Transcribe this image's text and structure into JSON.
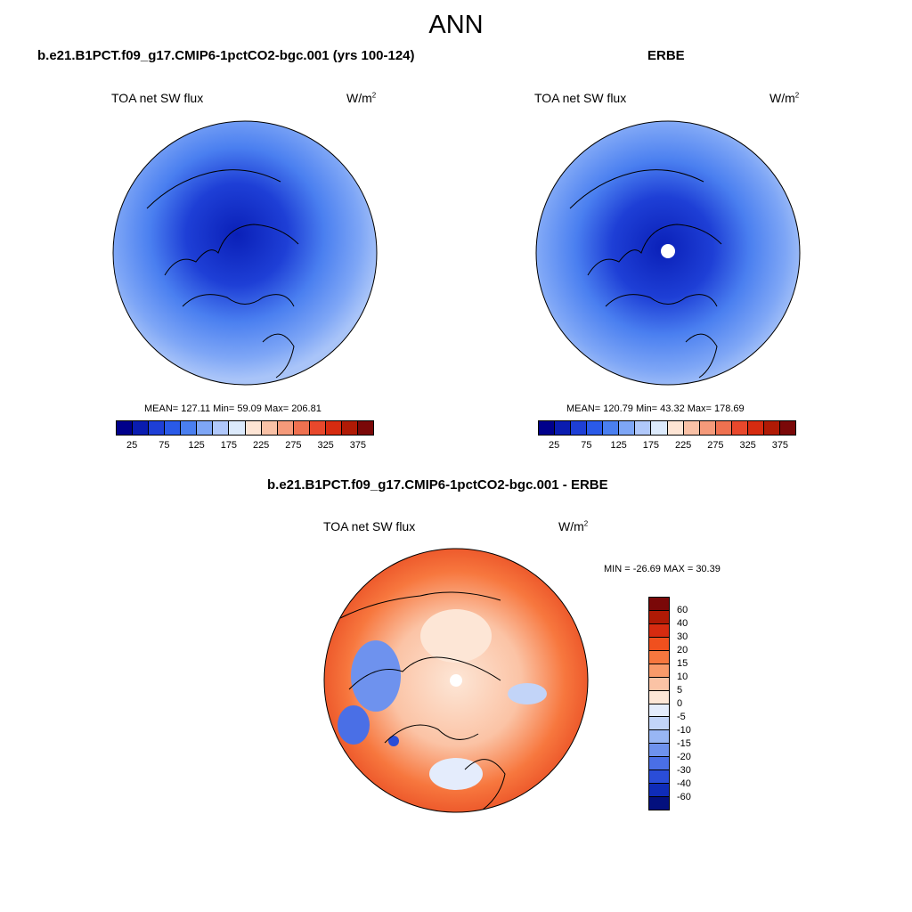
{
  "title": "ANN",
  "panels": [
    {
      "title": "b.e21.B1PCT.f09_g17.CMIP6-1pctCO2-bgc.001 (yrs 100-124)",
      "left_label": "TOA net SW flux",
      "units_base": "W/m",
      "units_exp": "2",
      "stats": "MEAN= 127.11  Min=  59.09  Max= 206.81",
      "colorbar_ticks": [
        "25",
        "75",
        "125",
        "175",
        "225",
        "275",
        "325",
        "375"
      ]
    },
    {
      "title": "ERBE",
      "left_label": "TOA net SW flux",
      "units_base": "W/m",
      "units_exp": "2",
      "stats": "MEAN= 120.79  Min=  43.32  Max= 178.69",
      "colorbar_ticks": [
        "25",
        "75",
        "125",
        "175",
        "225",
        "275",
        "325",
        "375"
      ]
    },
    {
      "title": "b.e21.B1PCT.f09_g17.CMIP6-1pctCO2-bgc.001 - ERBE",
      "left_label": "TOA net SW flux",
      "units_base": "W/m",
      "units_exp": "2",
      "stats": "MIN = -26.69 MAX =  30.39",
      "colorbar_ticks": [
        "60",
        "40",
        "30",
        "20",
        "15",
        "10",
        "5",
        "0",
        "-5",
        "-10",
        "-15",
        "-20",
        "-30",
        "-40",
        "-60"
      ]
    }
  ],
  "colors": {
    "abs_scale": [
      "#00008b",
      "#0a1cb0",
      "#1e3fd6",
      "#2a5ae8",
      "#4a7ff0",
      "#7ea6f6",
      "#b0c8fa",
      "#dceafc",
      "#fde4d4",
      "#f9c1a6",
      "#f59a7a",
      "#ef7150",
      "#e8482c",
      "#d62b10",
      "#b01a05",
      "#7a0808"
    ],
    "diff_scale": [
      "#7a0808",
      "#b01a05",
      "#d62b10",
      "#f0501e",
      "#f7773e",
      "#f99a6a",
      "#fbc3a5",
      "#fde6d6",
      "#e4ecfc",
      "#c2d4f8",
      "#98b6f4",
      "#6e92ee",
      "#4a6fe6",
      "#2a4dd8",
      "#0f2cb8",
      "#03107e"
    ]
  }
}
